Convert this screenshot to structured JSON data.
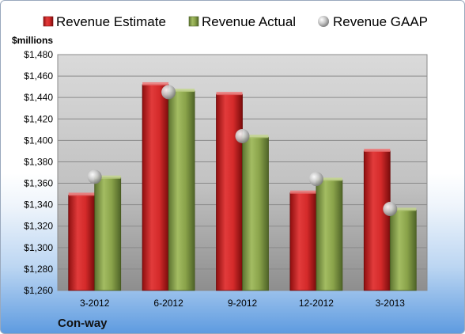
{
  "chart_data": {
    "type": "bar",
    "unit_label": "$millions",
    "company": "Con-way",
    "categories": [
      "3-2012",
      "6-2012",
      "9-2012",
      "12-2012",
      "3-2013"
    ],
    "series": [
      {
        "name": "Revenue Estimate",
        "kind": "bar",
        "color": "#d42a2a",
        "values": [
          1349,
          1452,
          1443,
          1351,
          1390
        ]
      },
      {
        "name": "Revenue Actual",
        "kind": "bar",
        "color": "#8aa34a",
        "values": [
          1365,
          1446,
          1403,
          1363,
          1335
        ]
      },
      {
        "name": "Revenue GAAP",
        "kind": "marker",
        "color": "#b8b8b8",
        "values": [
          1366,
          1445,
          1404,
          1364,
          1336
        ]
      }
    ],
    "ylim": [
      1260,
      1480
    ],
    "ytick_step": 20,
    "yticks": [
      "$1,260",
      "$1,280",
      "$1,300",
      "$1,320",
      "$1,340",
      "$1,360",
      "$1,380",
      "$1,400",
      "$1,420",
      "$1,440",
      "$1,460",
      "$1,480"
    ],
    "grid": true,
    "legend": "top"
  }
}
